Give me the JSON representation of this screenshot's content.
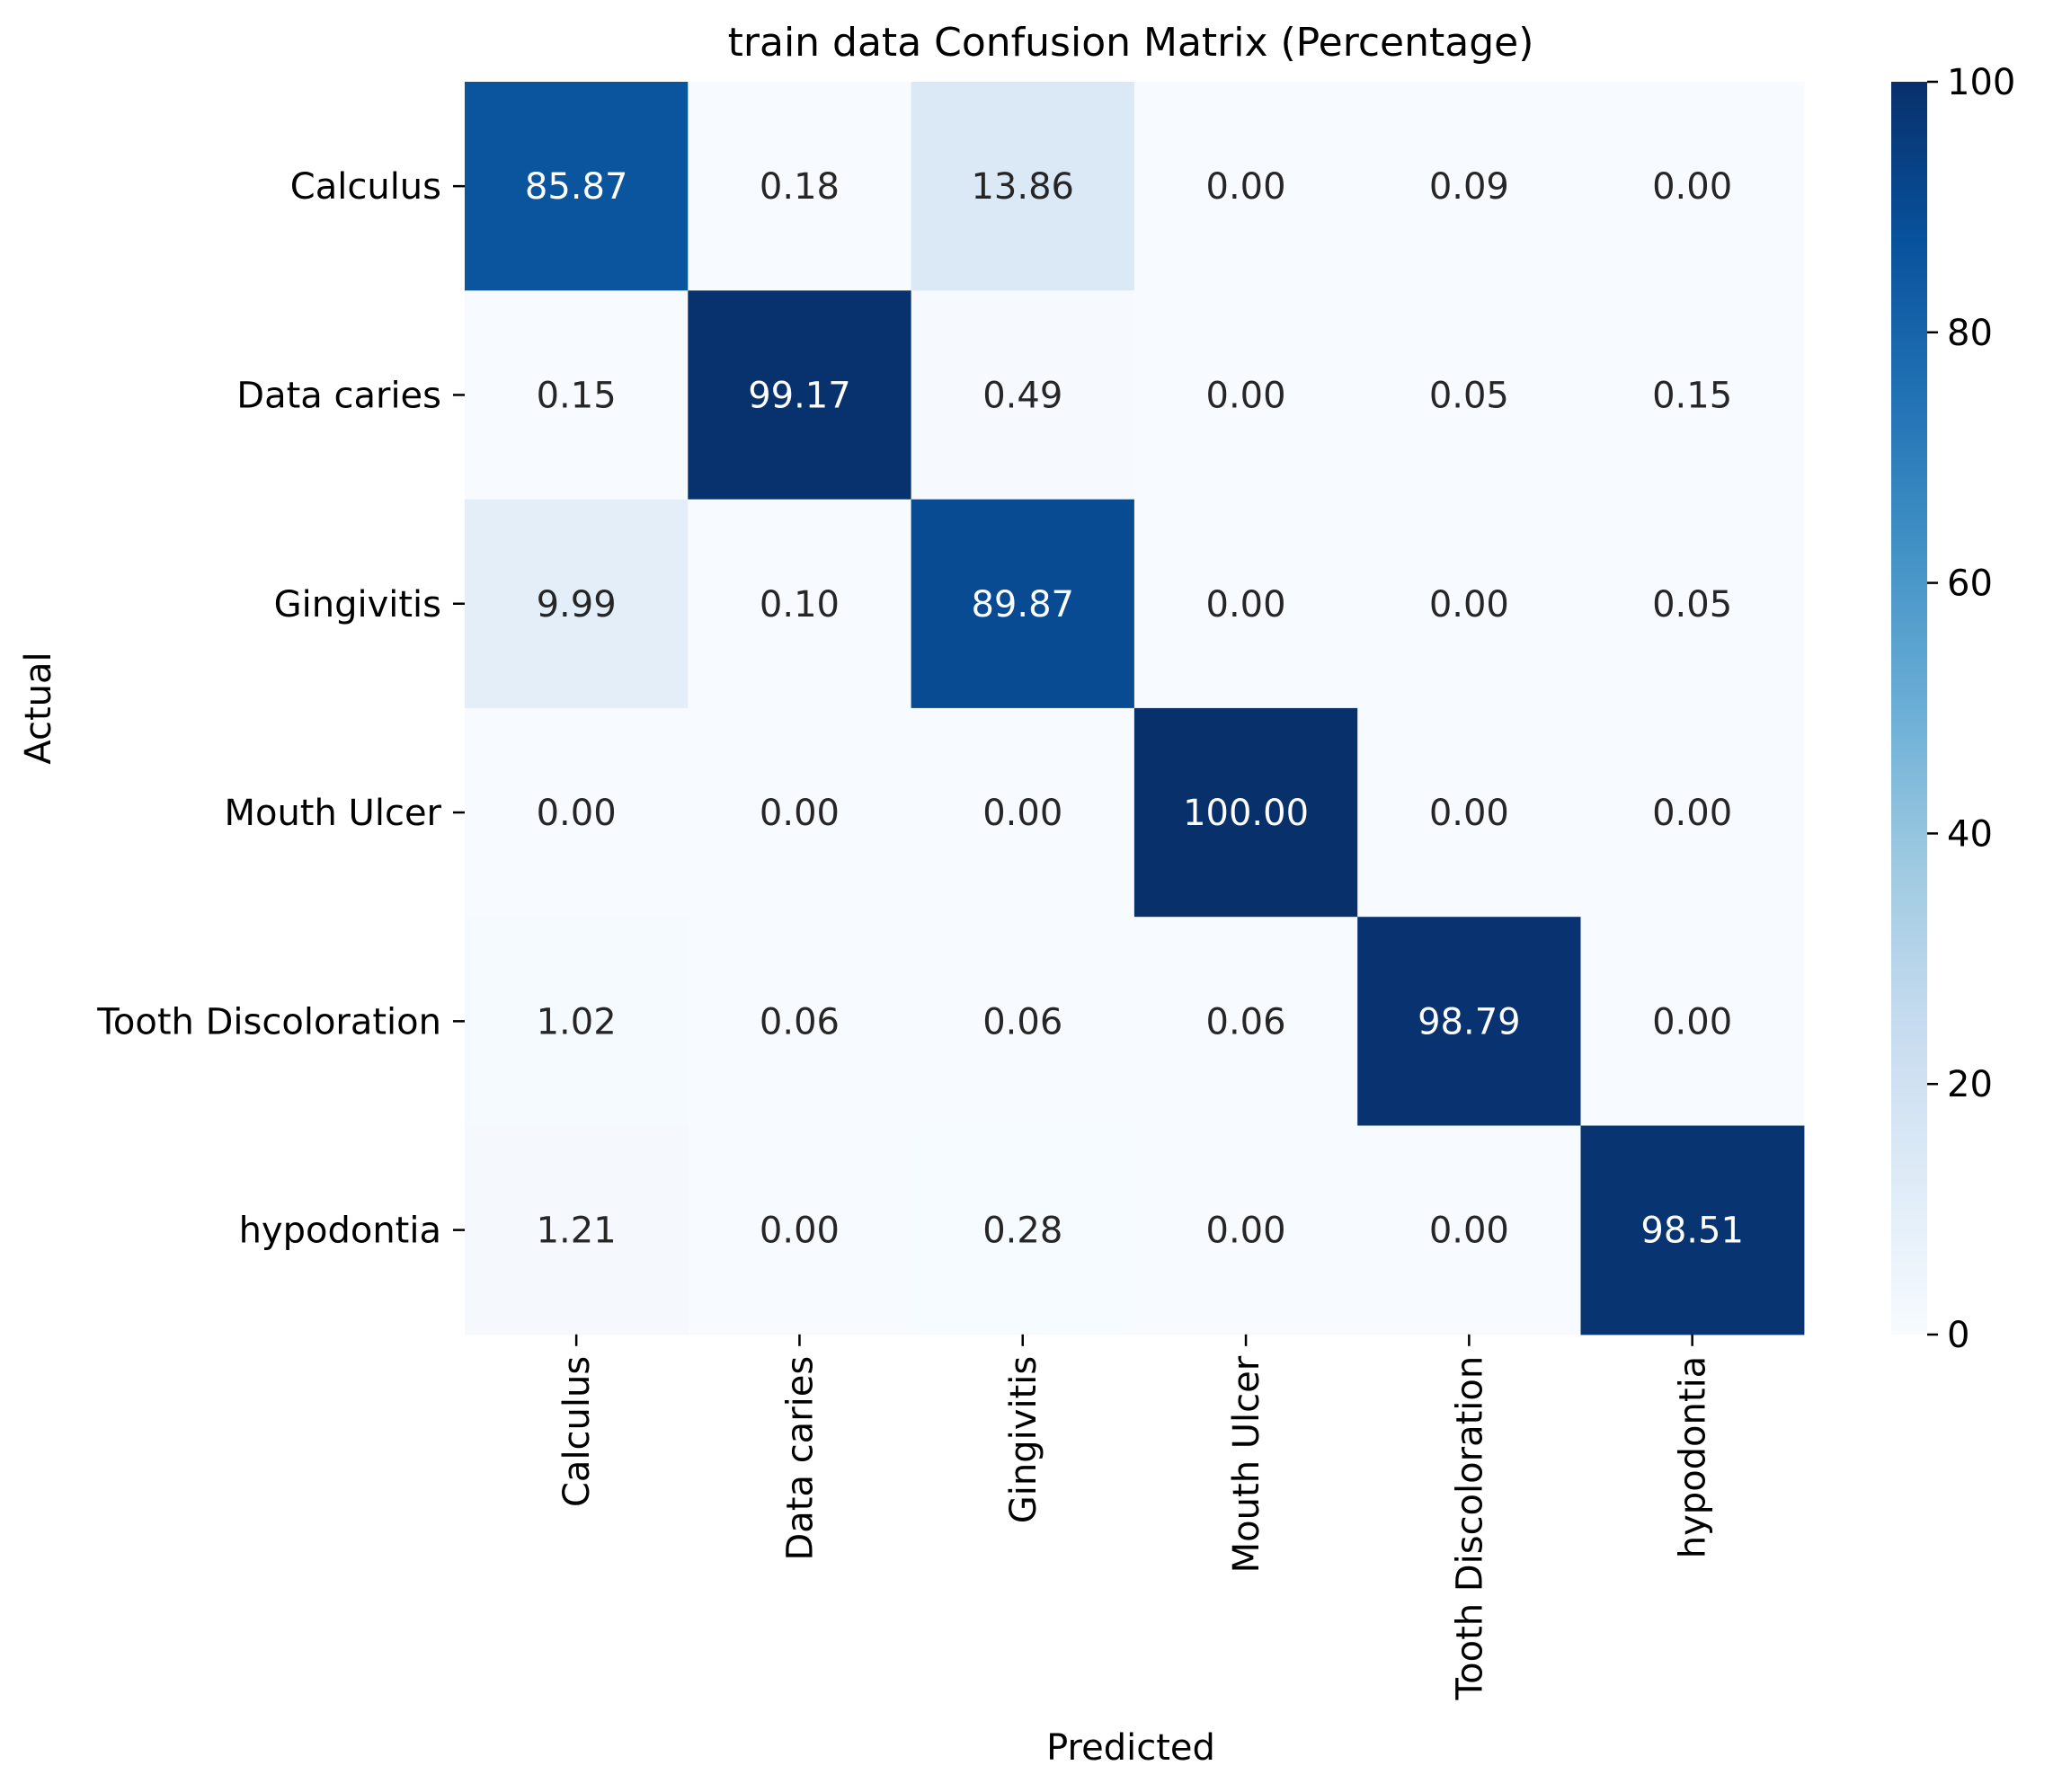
{
  "chart_data": {
    "type": "heatmap",
    "title": "train data Confusion Matrix (Percentage)",
    "xlabel": "Predicted",
    "ylabel": "Actual",
    "row_labels": [
      "Calculus",
      "Data caries",
      "Gingivitis",
      "Mouth Ulcer",
      "Tooth Discoloration",
      "hypodontia"
    ],
    "col_labels": [
      "Calculus",
      "Data caries",
      "Gingivitis",
      "Mouth Ulcer",
      "Tooth Discoloration",
      "hypodontia"
    ],
    "values": [
      [
        85.87,
        0.18,
        13.86,
        0.0,
        0.09,
        0.0
      ],
      [
        0.15,
        99.17,
        0.49,
        0.0,
        0.05,
        0.15
      ],
      [
        9.99,
        0.1,
        89.87,
        0.0,
        0.0,
        0.05
      ],
      [
        0.0,
        0.0,
        0.0,
        100.0,
        0.0,
        0.0
      ],
      [
        1.02,
        0.06,
        0.06,
        0.06,
        98.79,
        0.0
      ],
      [
        1.21,
        0.0,
        0.28,
        0.0,
        0.0,
        98.51
      ]
    ],
    "value_format_decimals": 2,
    "colormap": "Blues",
    "colorbar": {
      "vmin": 0,
      "vmax": 100,
      "ticks": [
        0,
        20,
        40,
        60,
        80,
        100
      ]
    }
  }
}
